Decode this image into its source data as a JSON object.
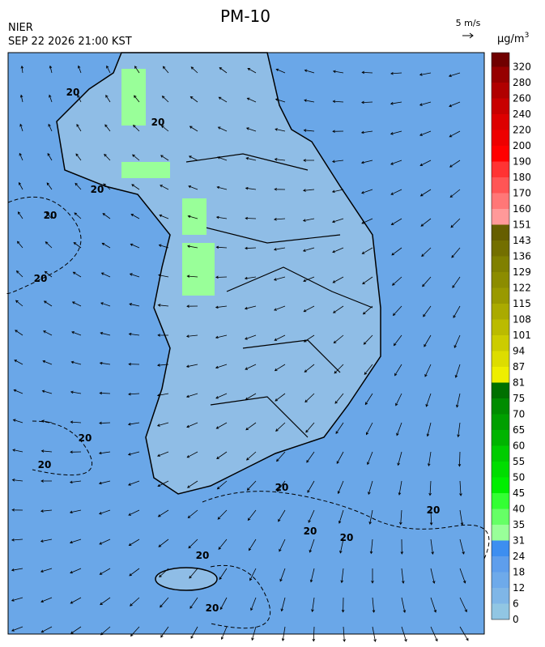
{
  "title": "PM-10",
  "agency": "NIER",
  "timestamp": "SEP 22 2026 21:00 KST",
  "wind_reference": "5 m/s",
  "legend": {
    "unit": "µg/m",
    "unit_exponent": "3",
    "levels": [
      0,
      6,
      12,
      18,
      24,
      31,
      35,
      40,
      45,
      50,
      55,
      60,
      65,
      70,
      75,
      81,
      87,
      94,
      101,
      108,
      115,
      122,
      129,
      136,
      143,
      151,
      160,
      170,
      180,
      190,
      200,
      220,
      240,
      260,
      280,
      320
    ],
    "colors": [
      "#91c6e3",
      "#7fb6e7",
      "#6eaaea",
      "#5e9eec",
      "#3d8ef0",
      "#99ff99",
      "#66ff66",
      "#33ff33",
      "#00ee00",
      "#00dd00",
      "#00cc00",
      "#00b400",
      "#009f00",
      "#008c00",
      "#007000",
      "#eeee00",
      "#dddd00",
      "#cccc00",
      "#bbbb00",
      "#aaaa00",
      "#999900",
      "#8c8c00",
      "#808000",
      "#736f00",
      "#665e00",
      "#ff9999",
      "#ff7777",
      "#ff5555",
      "#ff3333",
      "#ff0000",
      "#ee0000",
      "#dd0000",
      "#c80000",
      "#b00000",
      "#960000",
      "#700000"
    ]
  },
  "contour_labels": [
    "20",
    "20",
    "20",
    "20",
    "20",
    "20",
    "20",
    "20",
    "20",
    "20",
    "20",
    "20",
    "20"
  ]
}
